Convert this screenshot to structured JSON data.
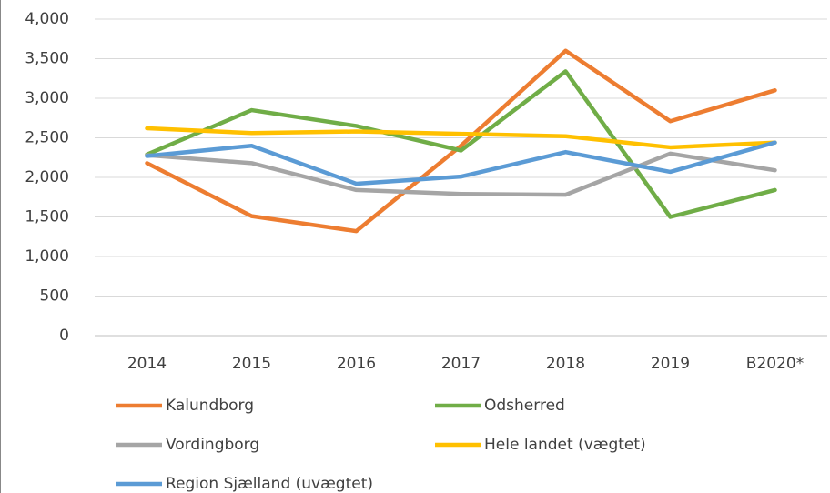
{
  "chart_data": {
    "type": "line",
    "categories": [
      "2014",
      "2015",
      "2016",
      "2017",
      "2018",
      "2019",
      "B2020*"
    ],
    "series": [
      {
        "name": "Kalundborg",
        "color": "#ed7d31",
        "values": [
          2180,
          1510,
          1320,
          2400,
          3600,
          2710,
          3100
        ]
      },
      {
        "name": "Odsherred",
        "color": "#70ad47",
        "values": [
          2290,
          2850,
          2650,
          2340,
          3340,
          1500,
          1840
        ]
      },
      {
        "name": "Vordingborg",
        "color": "#a5a5a5",
        "values": [
          2280,
          2180,
          1840,
          1790,
          1780,
          2300,
          2090
        ]
      },
      {
        "name": "Hele landet (vægtet)",
        "color": "#ffc000",
        "values": [
          2620,
          2560,
          2580,
          2550,
          2520,
          2380,
          2440
        ]
      },
      {
        "name": "Region Sjælland (uvægtet)",
        "color": "#5b9bd5",
        "values": [
          2270,
          2400,
          1920,
          2010,
          2320,
          2070,
          2440
        ]
      }
    ],
    "ylim": [
      0,
      4000
    ],
    "yticks": [
      0,
      500,
      {
        "value": 1000,
        "label": "1,000"
      },
      {
        "value": 1500,
        "label": "1,500"
      },
      {
        "value": 2000,
        "label": "2,000"
      },
      {
        "value": 2500,
        "label": "2,500"
      },
      {
        "value": 3000,
        "label": "3,000"
      },
      {
        "value": 3500,
        "label": "3,500"
      },
      {
        "value": 4000,
        "label": "4,000"
      }
    ],
    "grid": true
  }
}
